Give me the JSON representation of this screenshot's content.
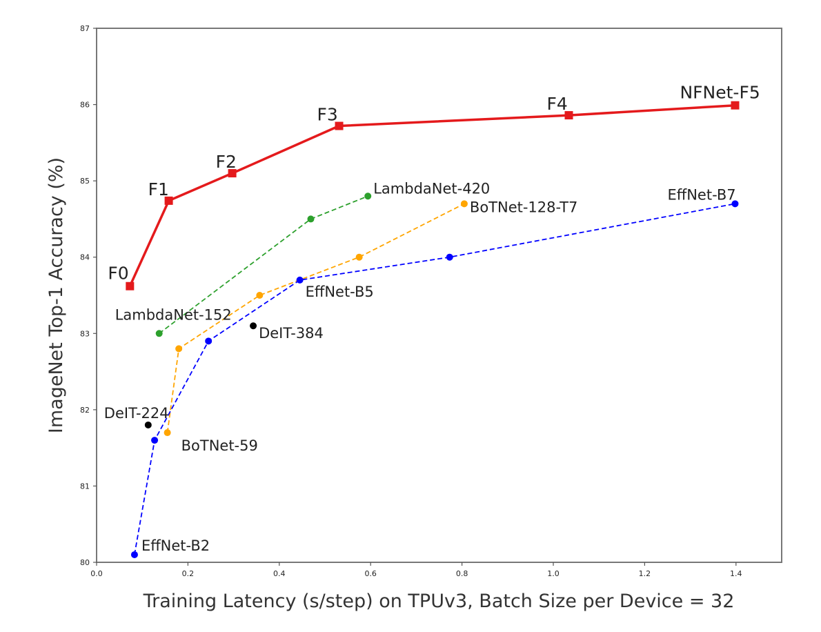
{
  "chart_data": {
    "type": "line",
    "xlabel": "Training Latency (s/step) on TPUv3, Batch Size per Device = 32",
    "ylabel": "ImageNet Top-1 Accuracy (%)",
    "xlim": [
      0.0,
      1.5
    ],
    "ylim": [
      80,
      87
    ],
    "x_ticks": [
      "0.0",
      "0.2",
      "0.4",
      "0.6",
      "0.8",
      "1.0",
      "1.2",
      "1.4"
    ],
    "y_ticks": [
      "80",
      "81",
      "82",
      "83",
      "84",
      "85",
      "86",
      "87"
    ],
    "grid": false,
    "legend": "none",
    "series": [
      {
        "color": "#e41a1c",
        "line_style": "solid",
        "marker": "square",
        "points": [
          {
            "x": 0.073,
            "y": 83.62,
            "label": "F0"
          },
          {
            "x": 0.158,
            "y": 84.74,
            "label": "F1"
          },
          {
            "x": 0.297,
            "y": 85.1,
            "label": "F2"
          },
          {
            "x": 0.531,
            "y": 85.72,
            "label": "F3"
          },
          {
            "x": 1.034,
            "y": 85.86,
            "label": "F4"
          },
          {
            "x": 1.398,
            "y": 85.99,
            "label": "NFNet-F5"
          }
        ]
      },
      {
        "color": "#2ca02c",
        "line_style": "dashed",
        "marker": "circle",
        "points": [
          {
            "x": 0.137,
            "y": 83.0,
            "label": "LambdaNet-152"
          },
          {
            "x": 0.469,
            "y": 84.5,
            "label": ""
          },
          {
            "x": 0.594,
            "y": 84.8,
            "label": "LambdaNet-420"
          }
        ]
      },
      {
        "color": "#ffa500",
        "line_style": "dashed",
        "marker": "circle",
        "points": [
          {
            "x": 0.155,
            "y": 81.7,
            "label": "BoTNet-59"
          },
          {
            "x": 0.18,
            "y": 82.8,
            "label": ""
          },
          {
            "x": 0.357,
            "y": 83.5,
            "label": ""
          },
          {
            "x": 0.575,
            "y": 84.0,
            "label": ""
          },
          {
            "x": 0.805,
            "y": 84.7,
            "label": "BoTNet-128-T7"
          }
        ]
      },
      {
        "color": "#0000ff",
        "line_style": "dashed",
        "marker": "circle",
        "points": [
          {
            "x": 0.083,
            "y": 80.1,
            "label": "EffNet-B2"
          },
          {
            "x": 0.127,
            "y": 81.6,
            "label": ""
          },
          {
            "x": 0.245,
            "y": 82.9,
            "label": ""
          },
          {
            "x": 0.445,
            "y": 83.7,
            "label": "EffNet-B5"
          },
          {
            "x": 0.773,
            "y": 84.0,
            "label": ""
          },
          {
            "x": 1.398,
            "y": 84.7,
            "label": "EffNet-B7"
          }
        ]
      },
      {
        "color": "#000000",
        "line_style": "none",
        "marker": "circle",
        "points": [
          {
            "x": 0.113,
            "y": 81.8,
            "label": "DeIT-224"
          },
          {
            "x": 0.343,
            "y": 83.1,
            "label": "DeIT-384"
          }
        ]
      }
    ]
  }
}
